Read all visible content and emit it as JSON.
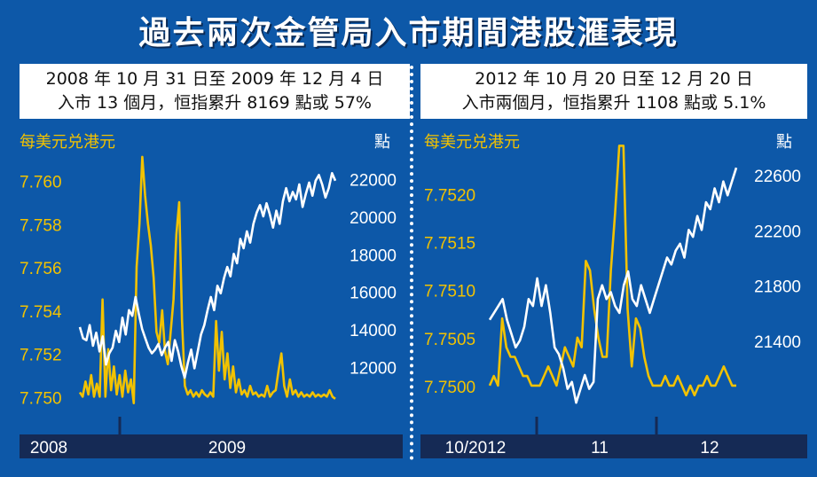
{
  "title": "過去兩次金管局入市期間港股滙表現",
  "colors": {
    "background": "#0d58a8",
    "hkd": "#f2c200",
    "hsi": "#ffffff",
    "timebar": "#152a55"
  },
  "chart_data": [
    {
      "type": "line",
      "caption": [
        "2008 年 10 月 31 日至 2009 年 12 月 4 日",
        "入市 13 個月，恒指累升 8169 點或 57%"
      ],
      "left_axis_title": "每美元兑港元",
      "right_axis_title": "點",
      "y_left": {
        "range": [
          7.7494,
          7.7613
        ],
        "ticks": [
          7.76,
          7.758,
          7.756,
          7.754,
          7.752,
          7.75
        ],
        "tick_labels": [
          "7.760",
          "7.758",
          "7.756",
          "7.754",
          "7.752",
          "7.750"
        ]
      },
      "y_right": {
        "range": [
          9700,
          23400
        ],
        "ticks": [
          22000,
          20000,
          18000,
          16000,
          14000,
          12000
        ],
        "tick_labels": [
          "22000",
          "20000",
          "18000",
          "16000",
          "14000",
          "12000"
        ]
      },
      "x_labels": [
        "2008",
        "2009"
      ],
      "series": [
        {
          "color": "#f2c200",
          "values": [
            7.7502,
            7.75,
            7.7507,
            7.7501,
            7.751,
            7.75,
            7.7506,
            7.75,
            7.7545,
            7.75,
            7.7522,
            7.7503,
            7.7514,
            7.7501,
            7.751,
            7.75,
            7.7512,
            7.7502,
            7.7508,
            7.7497,
            7.756,
            7.758,
            7.7611,
            7.7593,
            7.758,
            7.757,
            7.7555,
            7.753,
            7.7525,
            7.754,
            7.7521,
            7.7515,
            7.753,
            7.7545,
            7.7575,
            7.759,
            7.7535,
            7.7505,
            7.7501,
            7.7503,
            7.75,
            7.7502,
            7.75,
            7.7503,
            7.7501,
            7.75,
            7.7502,
            7.75,
            7.7535,
            7.7512,
            7.753,
            7.7508,
            7.752,
            7.7504,
            7.7514,
            7.7502,
            7.7508,
            7.7501,
            7.7503,
            7.75,
            7.7505,
            7.7501,
            7.7502,
            7.75,
            7.7501,
            7.75,
            7.7505,
            7.75,
            7.7502,
            7.7503,
            7.7512,
            7.752,
            7.7505,
            7.75,
            7.7508,
            7.7501,
            7.7503,
            7.75,
            7.7502,
            7.75,
            7.7501,
            7.75,
            7.7502,
            7.75,
            7.7501,
            7.75,
            7.7501,
            7.75,
            7.7503,
            7.75,
            7.7499
          ]
        },
        {
          "color": "#ffffff",
          "values": [
            14100,
            13500,
            13400,
            14200,
            13100,
            13800,
            12800,
            13600,
            12100,
            12700,
            13000,
            13900,
            13300,
            14600,
            13700,
            15000,
            14700,
            15700,
            14800,
            14000,
            13500,
            13000,
            12700,
            12900,
            13200,
            12600,
            13000,
            13300,
            12300,
            13400,
            12800,
            12000,
            11400,
            12200,
            12900,
            11900,
            12800,
            13700,
            14200,
            15000,
            15700,
            15000,
            16300,
            15900,
            16700,
            17300,
            16800,
            18000,
            17500,
            18800,
            18300,
            19200,
            18600,
            19600,
            20200,
            20600,
            20000,
            20700,
            20100,
            19400,
            20300,
            19600,
            20800,
            21500,
            20800,
            21300,
            20900,
            21700,
            20500,
            21200,
            21800,
            21100,
            21900,
            22200,
            21700,
            21000,
            21500,
            22300,
            21900
          ]
        }
      ]
    },
    {
      "type": "line",
      "caption": [
        "2012 年 10 月 20 日至 12 月 20 日",
        "入市兩個月，恒指累升 1108 點或 5.1%"
      ],
      "left_axis_title": "每美元兑港元",
      "right_axis_title": "點",
      "y_left": {
        "range": [
          7.74975,
          7.75243
        ],
        "ticks": [
          7.752,
          7.7515,
          7.751,
          7.7505,
          7.75
        ],
        "tick_labels": [
          "7.7520",
          "7.7515",
          "7.7510",
          "7.7505",
          "7.7500"
        ]
      },
      "y_right": {
        "range": [
          20900,
          22760
        ],
        "ticks": [
          22600,
          22200,
          21800,
          21400
        ],
        "tick_labels": [
          "22600",
          "22200",
          "21800",
          "21400"
        ]
      },
      "x_labels": [
        "10/2012",
        "11",
        "12"
      ],
      "series": [
        {
          "color": "#f2c200",
          "values": [
            7.75,
            7.7501,
            7.75,
            7.7507,
            7.7504,
            7.7503,
            7.7503,
            7.7502,
            7.7501,
            7.7501,
            7.75,
            7.75,
            7.75,
            7.7501,
            7.7502,
            7.7501,
            7.75,
            7.7502,
            7.7504,
            7.7503,
            7.7502,
            7.7505,
            7.7504,
            7.7513,
            7.7512,
            7.7508,
            7.7505,
            7.7503,
            7.7503,
            7.7512,
            7.7518,
            7.7525,
            7.7525,
            7.7508,
            7.7502,
            7.7507,
            7.7506,
            7.7503,
            7.7501,
            7.75,
            7.75,
            7.75,
            7.7501,
            7.75,
            7.75,
            7.7501,
            7.75,
            7.7499,
            7.75,
            7.7499,
            7.75,
            7.75,
            7.7501,
            7.75,
            7.75,
            7.7501,
            7.7502,
            7.7501,
            7.75,
            7.75
          ]
        },
        {
          "color": "#ffffff",
          "values": [
            21550,
            21600,
            21650,
            21700,
            21550,
            21450,
            21350,
            21400,
            21500,
            21700,
            21650,
            21850,
            21650,
            21800,
            21600,
            21350,
            21300,
            21200,
            21050,
            21100,
            20950,
            21050,
            21150,
            21050,
            21100,
            21700,
            21800,
            21700,
            21750,
            21650,
            21600,
            21800,
            21900,
            21700,
            21650,
            21800,
            21700,
            21600,
            21700,
            21800,
            21900,
            22000,
            21950,
            22050,
            22100,
            22000,
            22200,
            22150,
            22300,
            22200,
            22400,
            22350,
            22500,
            22400,
            22550,
            22450,
            22550,
            22650
          ]
        }
      ]
    }
  ]
}
